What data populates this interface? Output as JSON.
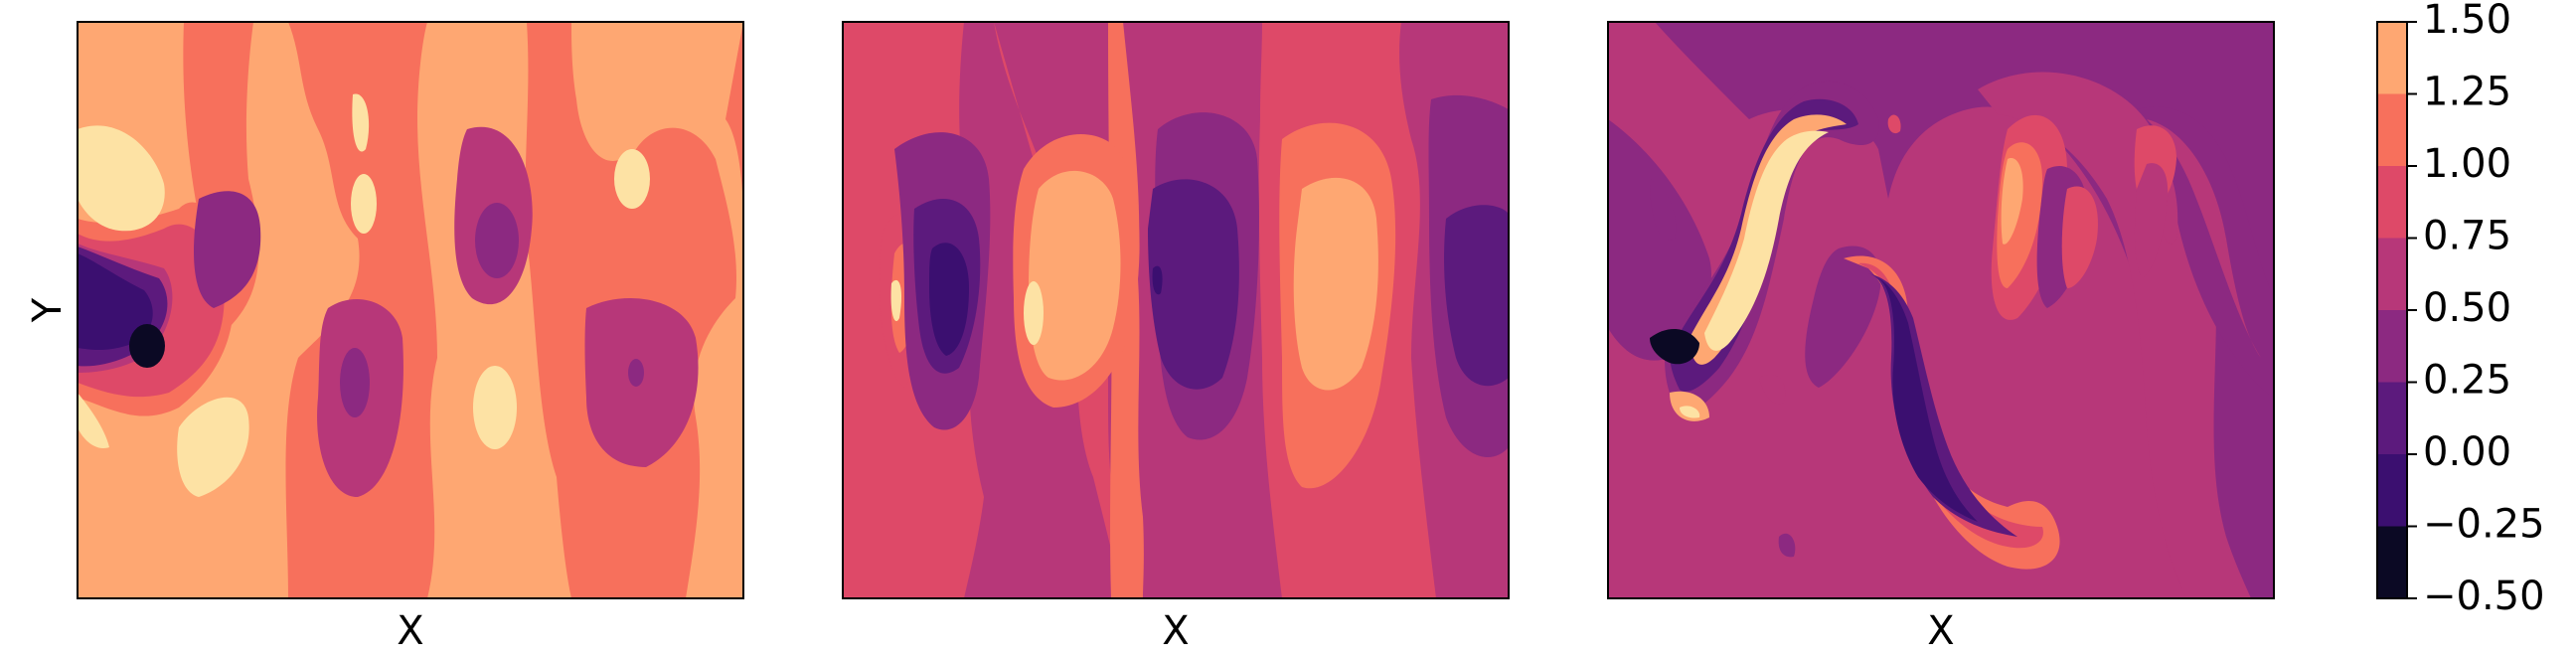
{
  "chart_data": {
    "type": "heatmap",
    "panels": [
      {
        "xlabel": "X",
        "ylabel": "Y"
      },
      {
        "xlabel": "X",
        "ylabel": ""
      },
      {
        "xlabel": "X",
        "ylabel": ""
      }
    ],
    "colorbar": {
      "ticks": [
        "1.50",
        "1.25",
        "1.00",
        "0.75",
        "0.50",
        "0.25",
        "0.00",
        "−0.25",
        "−0.50"
      ],
      "range": [
        -0.5,
        1.5
      ],
      "levels": [
        -0.5,
        -0.25,
        0.0,
        0.25,
        0.5,
        0.75,
        1.0,
        1.25,
        1.5
      ],
      "colormap": "magma",
      "colors": [
        "#0b0924",
        "#3b0f70",
        "#5c1a7d",
        "#8c2981",
        "#b73779",
        "#de4968",
        "#f7705c",
        "#fea772",
        "#fde2a4"
      ]
    }
  }
}
